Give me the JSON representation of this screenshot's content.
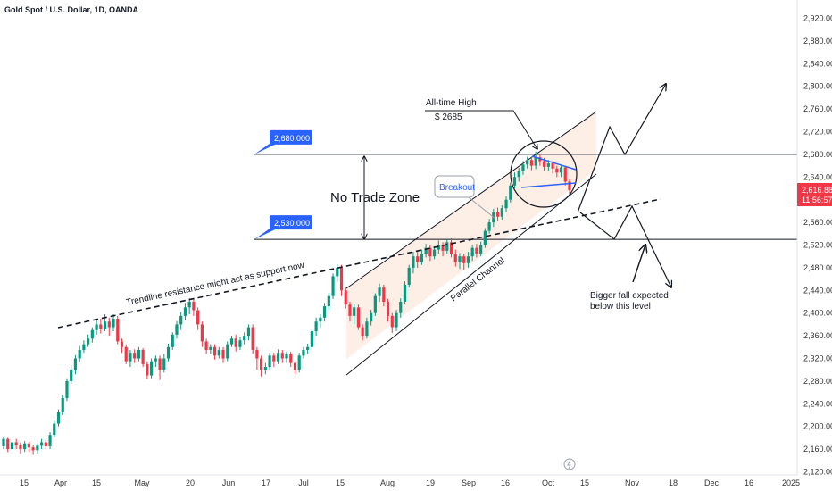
{
  "header": {
    "title": "Gold Spot / U.S. Dollar, 1D, OANDA"
  },
  "chart_data": {
    "type": "candlestick",
    "symbol": "Gold Spot / U.S. Dollar",
    "timeframe": "1D",
    "source": "OANDA",
    "y_axis": {
      "range": [
        2120,
        2935
      ],
      "ticks": [
        2120,
        2160,
        2200,
        2240,
        2280,
        2320,
        2360,
        2400,
        2440,
        2480,
        2520,
        2560,
        2600,
        2640,
        2680,
        2720,
        2760,
        2800,
        2840,
        2880,
        2920
      ],
      "tick_labels": [
        "2,120.000",
        "2,160.000",
        "2,200.000",
        "2,240.000",
        "2,280.000",
        "2,320.000",
        "2,360.000",
        "2,400.000",
        "2,440.000",
        "2,480.000",
        "2,520.000",
        "2,560.000",
        "2,600.000",
        "2,640.000",
        "2,680.000",
        "2,720.000",
        "2,760.000",
        "2,800.000",
        "2,840.000",
        "2,880.000",
        "2,920.000"
      ]
    },
    "x_axis": {
      "tick_labels": [
        "15",
        "Apr",
        "15",
        "May",
        "20",
        "Jun",
        "17",
        "Jul",
        "15",
        "Aug",
        "19",
        "Sep",
        "16",
        "Oct",
        "15",
        "Nov",
        "18",
        "Dec",
        "16",
        "2025"
      ]
    },
    "current_price": {
      "label": "2,616.880",
      "countdown": "11:56:57",
      "value": 2616.88
    },
    "colors": {
      "up": "#089981",
      "down": "#f23645",
      "price_tag": "#f23645",
      "level_tag": "#2962ff",
      "blue_lines": "#2962ff",
      "channel_fill": "#fdeee6"
    },
    "levels": [
      {
        "label": "2,680.000",
        "value": 2680
      },
      {
        "label": "2,530.000",
        "value": 2530
      }
    ],
    "annotations": {
      "all_time_high": "All-time High",
      "ath_price": "$ 2685",
      "no_trade_zone": "No Trade Zone",
      "breakout": "Breakout",
      "trendline": "Trendline resistance might act as support now",
      "parallel_channel": "Parallel Channel",
      "bigger_fall_line1": "Bigger fall expected",
      "bigger_fall_line2": "below this level"
    },
    "candles": [
      [
        2165,
        2178,
        2160,
        2182
      ],
      [
        2178,
        2160,
        2155,
        2180
      ],
      [
        2160,
        2172,
        2156,
        2176
      ],
      [
        2172,
        2168,
        2160,
        2178
      ],
      [
        2168,
        2160,
        2152,
        2172
      ],
      [
        2160,
        2170,
        2155,
        2174
      ],
      [
        2170,
        2163,
        2155,
        2173
      ],
      [
        2163,
        2158,
        2150,
        2168
      ],
      [
        2158,
        2166,
        2152,
        2170
      ],
      [
        2166,
        2172,
        2160,
        2178
      ],
      [
        2172,
        2165,
        2160,
        2176
      ],
      [
        2165,
        2185,
        2160,
        2190
      ],
      [
        2185,
        2205,
        2180,
        2210
      ],
      [
        2205,
        2225,
        2200,
        2230
      ],
      [
        2225,
        2250,
        2220,
        2256
      ],
      [
        2250,
        2280,
        2245,
        2285
      ],
      [
        2280,
        2300,
        2275,
        2308
      ],
      [
        2300,
        2320,
        2292,
        2326
      ],
      [
        2320,
        2335,
        2314,
        2342
      ],
      [
        2335,
        2345,
        2330,
        2352
      ],
      [
        2345,
        2355,
        2340,
        2362
      ],
      [
        2355,
        2370,
        2348,
        2375
      ],
      [
        2370,
        2380,
        2362,
        2388
      ],
      [
        2380,
        2372,
        2364,
        2390
      ],
      [
        2372,
        2385,
        2368,
        2398
      ],
      [
        2385,
        2375,
        2360,
        2392
      ],
      [
        2375,
        2390,
        2368,
        2398
      ],
      [
        2390,
        2350,
        2345,
        2395
      ],
      [
        2350,
        2340,
        2330,
        2355
      ],
      [
        2340,
        2315,
        2310,
        2345
      ],
      [
        2315,
        2330,
        2305,
        2335
      ],
      [
        2330,
        2320,
        2312,
        2336
      ],
      [
        2320,
        2335,
        2315,
        2340
      ],
      [
        2335,
        2310,
        2305,
        2338
      ],
      [
        2310,
        2290,
        2284,
        2315
      ],
      [
        2290,
        2315,
        2285,
        2320
      ],
      [
        2315,
        2320,
        2305,
        2325
      ],
      [
        2320,
        2300,
        2282,
        2325
      ],
      [
        2300,
        2320,
        2295,
        2328
      ],
      [
        2320,
        2340,
        2315,
        2346
      ],
      [
        2340,
        2362,
        2335,
        2366
      ],
      [
        2362,
        2380,
        2355,
        2386
      ],
      [
        2380,
        2395,
        2370,
        2402
      ],
      [
        2395,
        2410,
        2388,
        2418
      ],
      [
        2410,
        2420,
        2398,
        2426
      ],
      [
        2420,
        2405,
        2395,
        2425
      ],
      [
        2405,
        2380,
        2370,
        2410
      ],
      [
        2380,
        2350,
        2340,
        2385
      ],
      [
        2350,
        2335,
        2328,
        2355
      ],
      [
        2335,
        2340,
        2328,
        2345
      ],
      [
        2340,
        2325,
        2318,
        2345
      ],
      [
        2325,
        2335,
        2320,
        2340
      ],
      [
        2335,
        2320,
        2312,
        2340
      ],
      [
        2320,
        2345,
        2315,
        2350
      ],
      [
        2345,
        2355,
        2340,
        2360
      ],
      [
        2355,
        2340,
        2332,
        2362
      ],
      [
        2340,
        2352,
        2335,
        2358
      ],
      [
        2352,
        2360,
        2345,
        2366
      ],
      [
        2360,
        2375,
        2352,
        2380
      ],
      [
        2375,
        2335,
        2328,
        2380
      ],
      [
        2335,
        2320,
        2300,
        2340
      ],
      [
        2320,
        2300,
        2288,
        2325
      ],
      [
        2300,
        2305,
        2292,
        2312
      ],
      [
        2305,
        2325,
        2300,
        2330
      ],
      [
        2325,
        2315,
        2305,
        2330
      ],
      [
        2315,
        2330,
        2310,
        2336
      ],
      [
        2330,
        2320,
        2312,
        2335
      ],
      [
        2320,
        2328,
        2312,
        2332
      ],
      [
        2328,
        2312,
        2305,
        2332
      ],
      [
        2312,
        2300,
        2292,
        2315
      ],
      [
        2300,
        2325,
        2295,
        2330
      ],
      [
        2325,
        2335,
        2320,
        2340
      ],
      [
        2335,
        2340,
        2328,
        2346
      ],
      [
        2340,
        2368,
        2335,
        2372
      ],
      [
        2368,
        2385,
        2360,
        2392
      ],
      [
        2385,
        2392,
        2375,
        2398
      ],
      [
        2392,
        2412,
        2385,
        2418
      ],
      [
        2412,
        2430,
        2405,
        2436
      ],
      [
        2430,
        2465,
        2425,
        2470
      ],
      [
        2465,
        2480,
        2455,
        2486
      ],
      [
        2480,
        2440,
        2430,
        2485
      ],
      [
        2440,
        2415,
        2408,
        2445
      ],
      [
        2415,
        2395,
        2385,
        2420
      ],
      [
        2395,
        2410,
        2380,
        2416
      ],
      [
        2410,
        2375,
        2370,
        2415
      ],
      [
        2375,
        2360,
        2352,
        2380
      ],
      [
        2360,
        2385,
        2355,
        2392
      ],
      [
        2385,
        2400,
        2378,
        2406
      ],
      [
        2400,
        2430,
        2395,
        2435
      ],
      [
        2430,
        2445,
        2420,
        2452
      ],
      [
        2445,
        2420,
        2412,
        2450
      ],
      [
        2420,
        2395,
        2385,
        2425
      ],
      [
        2395,
        2375,
        2365,
        2400
      ],
      [
        2375,
        2400,
        2368,
        2406
      ],
      [
        2400,
        2420,
        2392,
        2426
      ],
      [
        2420,
        2450,
        2415,
        2456
      ],
      [
        2450,
        2480,
        2445,
        2485
      ],
      [
        2480,
        2500,
        2470,
        2508
      ],
      [
        2500,
        2490,
        2480,
        2508
      ],
      [
        2490,
        2505,
        2485,
        2512
      ],
      [
        2505,
        2515,
        2498,
        2522
      ],
      [
        2515,
        2500,
        2492,
        2520
      ],
      [
        2500,
        2512,
        2495,
        2518
      ],
      [
        2512,
        2520,
        2505,
        2528
      ],
      [
        2520,
        2510,
        2500,
        2525
      ],
      [
        2510,
        2525,
        2505,
        2530
      ],
      [
        2525,
        2505,
        2498,
        2532
      ],
      [
        2505,
        2490,
        2482,
        2512
      ],
      [
        2490,
        2500,
        2478,
        2506
      ],
      [
        2500,
        2488,
        2476,
        2505
      ],
      [
        2488,
        2500,
        2480,
        2508
      ],
      [
        2500,
        2515,
        2492,
        2520
      ],
      [
        2515,
        2505,
        2498,
        2522
      ],
      [
        2505,
        2520,
        2500,
        2526
      ],
      [
        2520,
        2545,
        2515,
        2550
      ],
      [
        2545,
        2560,
        2540,
        2566
      ],
      [
        2560,
        2578,
        2552,
        2584
      ],
      [
        2578,
        2570,
        2562,
        2586
      ],
      [
        2570,
        2585,
        2565,
        2590
      ],
      [
        2585,
        2600,
        2578,
        2606
      ],
      [
        2600,
        2625,
        2595,
        2630
      ],
      [
        2625,
        2640,
        2620,
        2648
      ],
      [
        2640,
        2650,
        2632,
        2656
      ],
      [
        2650,
        2662,
        2644,
        2668
      ],
      [
        2662,
        2670,
        2655,
        2676
      ],
      [
        2670,
        2660,
        2652,
        2676
      ],
      [
        2660,
        2675,
        2654,
        2685
      ],
      [
        2675,
        2668,
        2660,
        2680
      ],
      [
        2668,
        2658,
        2650,
        2674
      ],
      [
        2658,
        2664,
        2650,
        2670
      ],
      [
        2664,
        2655,
        2646,
        2668
      ],
      [
        2655,
        2648,
        2640,
        2660
      ],
      [
        2648,
        2657,
        2640,
        2662
      ],
      [
        2657,
        2632,
        2625,
        2660
      ],
      [
        2632,
        2616.88,
        2610,
        2636
      ]
    ]
  }
}
